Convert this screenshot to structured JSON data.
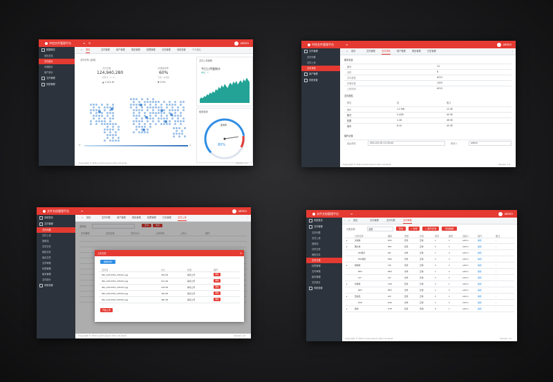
{
  "common": {
    "brand_short": "中控文件管理平台",
    "brand_long": "文件文档管理平台",
    "user": "admin",
    "copyright": "Copyright © 2021 Lorem ipsum dolor sit amet",
    "version": "Version 1.0",
    "nav_prev": "‹",
    "nav_next": "›",
    "red": "#e43a32",
    "sidebar_bg": "#2c333c"
  },
  "dashboard": {
    "tabs": [
      "首页",
      "文件管理",
      "用户管理",
      "角色管理",
      "权限管理",
      "日志管理",
      "系统设置",
      "个人中心"
    ],
    "sidebar": [
      {
        "label": "数据概览",
        "kind": "grp"
      },
      {
        "label": "首页总览",
        "kind": "itm"
      },
      {
        "label": "文件统计",
        "kind": "itm",
        "active": true
      },
      {
        "label": "存储统计",
        "kind": "itm"
      },
      {
        "label": "用户统计",
        "kind": "itm"
      },
      {
        "label": "文件管理",
        "kind": "grp"
      },
      {
        "label": "系统管理",
        "kind": "grp"
      }
    ],
    "map_title": "文件分布 (全球)",
    "stat1_label": "文件总数",
    "stat1_value": "124,940,280",
    "stat1_sub": "较昨日 +2.1%",
    "stat1_extra": "▲ 1,241.61",
    "stat2_label": "存储使用率",
    "stat2_value": "60%",
    "stat2_sub": "已用 / 总容量",
    "stat2_extra": "▼ 0.5%",
    "trend_head": "文件上传趋势",
    "trend_title": "今日上传量统计",
    "trend_sub": "单位：个",
    "gauge_head": "磁盘使用",
    "gauge_value": "80%",
    "gauge_caption": "使用率",
    "gauge_level": 0.8,
    "trend_values": [
      12,
      18,
      15,
      22,
      20,
      28,
      25,
      34,
      30,
      38,
      33,
      45,
      40,
      52,
      46,
      58,
      50,
      62,
      55,
      48,
      60,
      66,
      58,
      70,
      63,
      72,
      60,
      68,
      74,
      65,
      78,
      70,
      82,
      75,
      68
    ],
    "legend_left": "低",
    "legend_right": "高"
  },
  "detail": {
    "tabs": [
      "首页",
      "文件管理",
      "文件详情",
      "用户管理",
      "角色管理",
      "日志管理"
    ],
    "sidebar": [
      {
        "label": "文件管理",
        "kind": "grp"
      },
      {
        "label": "文件列表",
        "kind": "itm"
      },
      {
        "label": "文件上传",
        "kind": "itm"
      },
      {
        "label": "文件详情",
        "kind": "itm",
        "active": true
      },
      {
        "label": "用户管理",
        "kind": "grp"
      },
      {
        "label": "系统设置",
        "kind": "grp"
      }
    ],
    "section1": "基本信息",
    "info_rows": [
      {
        "k": "编号",
        "v": "10"
      },
      {
        "k": "名称",
        "v": "6"
      },
      {
        "k": "文件类型",
        "v": "AS12"
      },
      {
        "k": "存储位置",
        "v": "12ES"
      },
      {
        "k": "上传时间",
        "v": "AS12"
      }
    ],
    "section2": "文件属性",
    "attr_head": [
      "属性",
      "值",
      "备注"
    ],
    "attr_rows": [
      [
        "大小",
        "1.2 MB",
        "12 SE"
      ],
      [
        "格式",
        "5.4GB",
        "40 SE"
      ],
      [
        "权限",
        "1.28",
        "48 SE"
      ],
      [
        "版本",
        "6.10",
        "40 SE"
      ]
    ],
    "section3": "操作记录",
    "record_label": "最后修改",
    "record_value": "2021-03-05 12:30:40",
    "record_label2": "修改人",
    "record_value2": "admin"
  },
  "upload": {
    "tabs": [
      "首页",
      "文件列表",
      "用户管理",
      "角色管理",
      "权限管理",
      "日志管理",
      "文件上传"
    ],
    "sidebar": [
      {
        "label": "系统首页",
        "kind": "grp"
      },
      {
        "label": "文件管理",
        "kind": "grp"
      },
      {
        "label": "文件列表",
        "kind": "itm",
        "active": true
      },
      {
        "label": "文件上传",
        "kind": "itm"
      },
      {
        "label": "回收站",
        "kind": "itm"
      },
      {
        "label": "共享文件",
        "kind": "itm"
      },
      {
        "label": "我的文件",
        "kind": "itm"
      },
      {
        "label": "最近文件",
        "kind": "itm"
      },
      {
        "label": "文件审核",
        "kind": "itm"
      },
      {
        "label": "标签管理",
        "kind": "itm"
      },
      {
        "label": "版本管理",
        "kind": "itm"
      },
      {
        "label": "文件统计",
        "kind": "itm"
      },
      {
        "label": "系统设置",
        "kind": "grp"
      }
    ],
    "search_label": "文件名",
    "btn_search": "查询",
    "btn_reset": "重置",
    "bg_head": [
      "文件编号",
      "文件名称",
      "文件大小",
      "上传时间",
      "上传人",
      "操作"
    ],
    "modal_title": "上传文件",
    "modal_close": "×",
    "modal_btn_select": "选择文件",
    "modal_head": [
      "文件名",
      "大小",
      "状态",
      "操作"
    ],
    "modal_rows": [
      [
        "IMG_20210301_095011.jpg",
        "256 KB",
        "等待上传",
        "删除"
      ],
      [
        "IMG_20210301_095012.jpg",
        "512 KB",
        "等待上传",
        "删除"
      ],
      [
        "IMG_20210301_095013.jpg",
        "128 KB",
        "等待上传",
        "删除"
      ],
      [
        "IMG_20210301_095014.jpg",
        "300 KB",
        "等待上传",
        "删除"
      ],
      [
        "IMG_20210301_095015.jpg",
        "480 KB",
        "等待上传",
        "删除"
      ]
    ],
    "modal_btn_upload": "开始上传"
  },
  "list": {
    "tabs": [
      "首页",
      "文件管理",
      "文件列表",
      "文件审核"
    ],
    "sidebar": [
      {
        "label": "系统首页",
        "kind": "grp"
      },
      {
        "label": "文件管理",
        "kind": "grp"
      },
      {
        "label": "文件列表",
        "kind": "itm"
      },
      {
        "label": "文件上传",
        "kind": "itm"
      },
      {
        "label": "回收站",
        "kind": "itm"
      },
      {
        "label": "共享文件",
        "kind": "itm"
      },
      {
        "label": "我的文件",
        "kind": "itm"
      },
      {
        "label": "文件分类",
        "kind": "itm",
        "active": true
      },
      {
        "label": "标签管理",
        "kind": "itm"
      },
      {
        "label": "文件审核",
        "kind": "itm"
      },
      {
        "label": "版本管理",
        "kind": "itm"
      },
      {
        "label": "文件统计",
        "kind": "itm"
      },
      {
        "label": "系统设置",
        "kind": "grp"
      }
    ],
    "search_label": "分类名称",
    "search_value": "全部",
    "btn_query": "查询",
    "btn_add": "+ 新增",
    "btn_expand": "+ 展开/折叠",
    "btn_export": "导出数据",
    "head": [
      "",
      "分类名称",
      "编码",
      "类型",
      "状态",
      "排序",
      "级别",
      "创建人",
      "操作",
      "备注"
    ],
    "rows": [
      [
        "▸",
        "文档类",
        "DOC",
        "目录",
        "正常",
        "1",
        "1",
        "admin",
        "编辑",
        "-"
      ],
      [
        "▸",
        "图片类",
        "IMG",
        "目录",
        "正常",
        "2",
        "1",
        "admin",
        "编辑",
        "-"
      ],
      [
        "",
        "JPG图片",
        "JPG",
        "文件",
        "正常",
        "1",
        "2",
        "admin",
        "编辑",
        "-"
      ],
      [
        "",
        "PNG图片",
        "PNG",
        "文件",
        "正常",
        "2",
        "2",
        "admin",
        "编辑",
        "-"
      ],
      [
        "▸",
        "视频类",
        "VID",
        "目录",
        "正常",
        "3",
        "1",
        "admin",
        "编辑",
        "-"
      ],
      [
        "",
        "MP4",
        "MP4",
        "文件",
        "正常",
        "1",
        "2",
        "admin",
        "编辑",
        "-"
      ],
      [
        "",
        "AVI",
        "AVI",
        "文件",
        "正常",
        "2",
        "2",
        "admin",
        "编辑",
        "-"
      ],
      [
        "▸",
        "音频类",
        "AUD",
        "目录",
        "正常",
        "4",
        "1",
        "admin",
        "编辑",
        "-"
      ],
      [
        "",
        "MP3",
        "MP3",
        "文件",
        "正常",
        "1",
        "2",
        "admin",
        "编辑",
        "-"
      ],
      [
        "▸",
        "压缩包",
        "ZIP",
        "目录",
        "正常",
        "5",
        "1",
        "admin",
        "编辑",
        "-"
      ],
      [
        "",
        "RAR",
        "RAR",
        "文件",
        "正常",
        "1",
        "2",
        "admin",
        "编辑",
        "-"
      ],
      [
        "▸",
        "其他",
        "OTH",
        "目录",
        "停用",
        "6",
        "1",
        "admin",
        "编辑",
        "-"
      ]
    ]
  }
}
